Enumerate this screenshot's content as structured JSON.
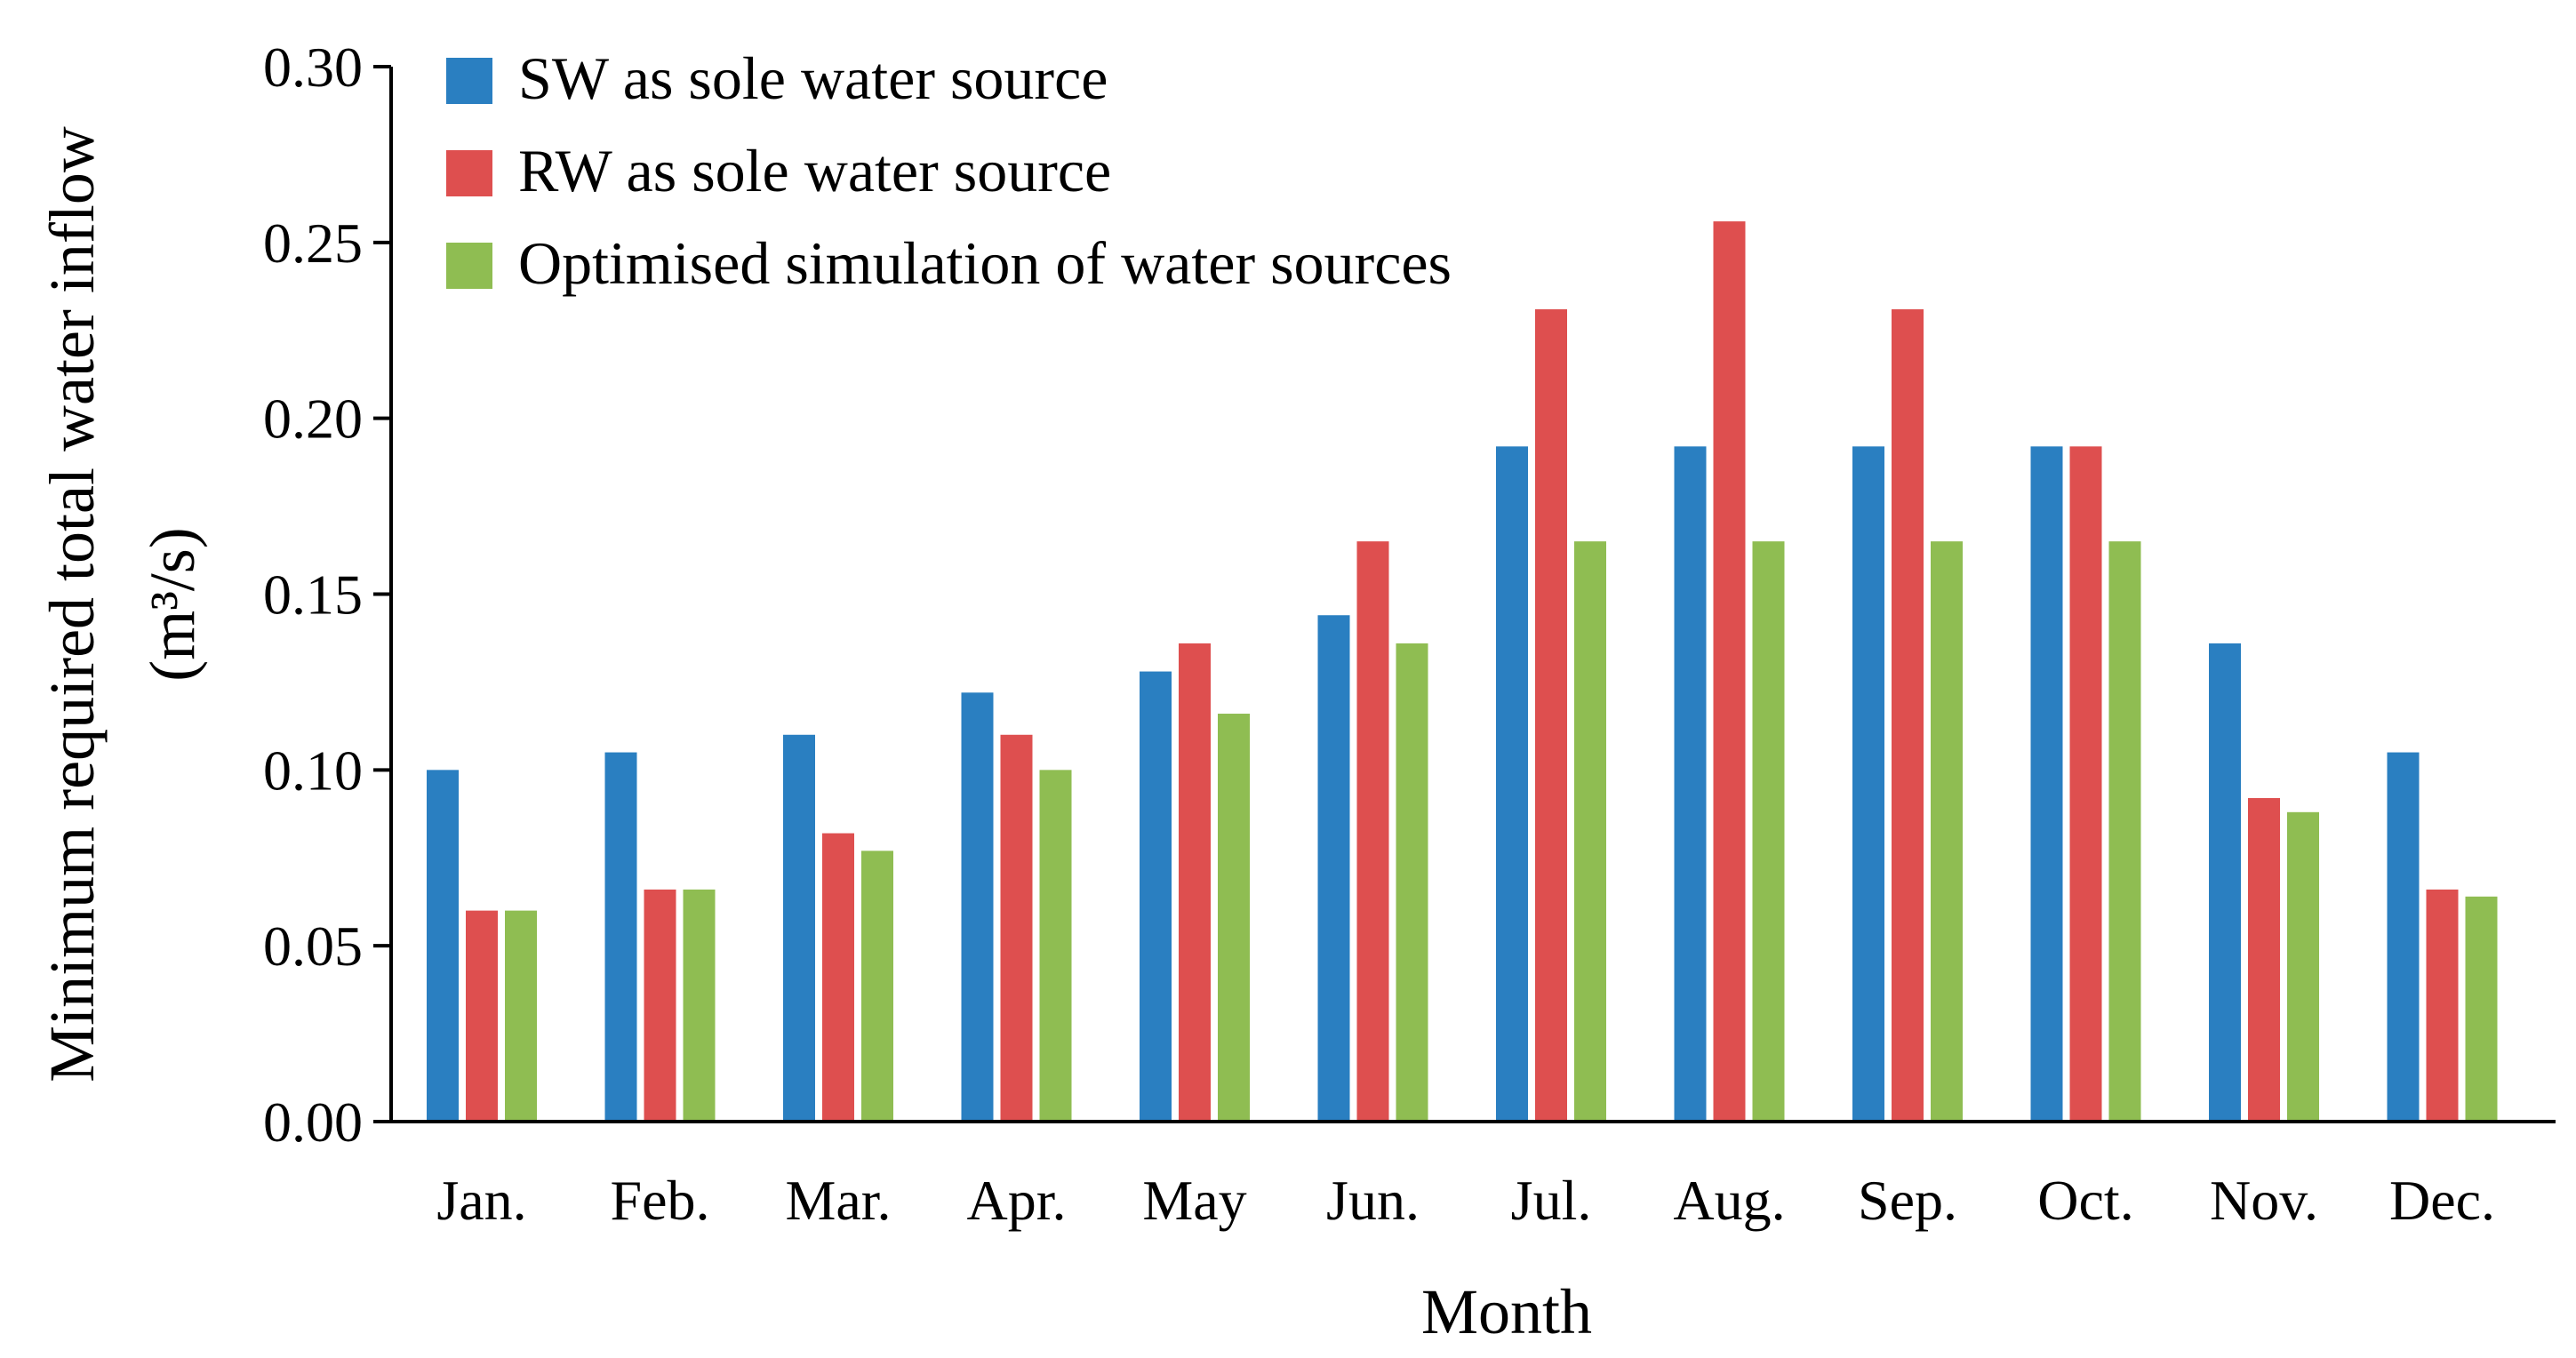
{
  "chart_data": {
    "type": "bar",
    "title": "",
    "xlabel": "Month",
    "ylabel": "Minimum required total water inflow",
    "ylabel_unit": "(m³/s)",
    "ylim": [
      0,
      0.3
    ],
    "yticks": [
      "0.00",
      "0.05",
      "0.10",
      "0.15",
      "0.20",
      "0.25",
      "0.30"
    ],
    "grid": false,
    "legend_position": "top-left",
    "categories": [
      "Jan.",
      "Feb.",
      "Mar.",
      "Apr.",
      "May",
      "Jun.",
      "Jul.",
      "Aug.",
      "Sep.",
      "Oct.",
      "Nov.",
      "Dec."
    ],
    "series": [
      {
        "name": "SW as sole water source",
        "color": "#2a7fc1",
        "values": [
          0.1,
          0.105,
          0.11,
          0.122,
          0.128,
          0.144,
          0.192,
          0.192,
          0.192,
          0.192,
          0.136,
          0.105
        ]
      },
      {
        "name": "RW as sole water source",
        "color": "#de4f4f",
        "values": [
          0.06,
          0.066,
          0.082,
          0.11,
          0.136,
          0.165,
          0.231,
          0.256,
          0.231,
          0.192,
          0.092,
          0.066
        ]
      },
      {
        "name": "Optimised simulation of water sources",
        "color": "#8fbd52",
        "values": [
          0.06,
          0.066,
          0.077,
          0.1,
          0.116,
          0.136,
          0.165,
          0.165,
          0.165,
          0.165,
          0.088,
          0.064
        ]
      }
    ]
  }
}
